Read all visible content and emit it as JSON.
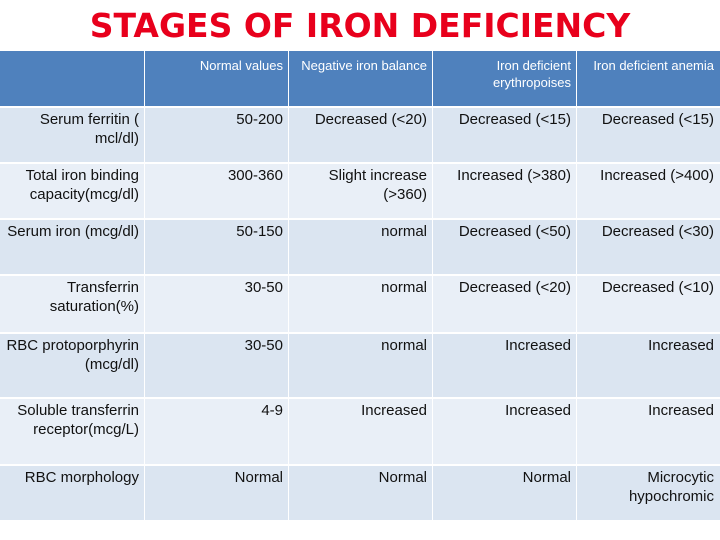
{
  "title": "STAGES OF IRON DEFICIENCY",
  "headers": [
    "",
    "Normal values",
    "Negative iron balance",
    "Iron deficient erythropoises",
    "Iron deficient anemia"
  ],
  "rows": [
    {
      "label": "Serum ferritin ( mcl/dl)",
      "values": [
        "50-200",
        "Decreased (<20)",
        "Decreased (<15)",
        "Decreased (<15)"
      ]
    },
    {
      "label": "Total iron binding capacity(mcg/dl)",
      "values": [
        "300-360",
        "Slight increase (>360)",
        "Increased (>380)",
        "Increased (>400)"
      ]
    },
    {
      "label": "Serum iron (mcg/dl)",
      "values": [
        "50-150",
        "normal",
        "Decreased (<50)",
        "Decreased (<30)"
      ]
    },
    {
      "label": "Transferrin saturation(%)",
      "values": [
        "30-50",
        "normal",
        "Decreased (<20)",
        "Decreased (<10)"
      ]
    },
    {
      "label": "RBC protoporphyrin (mcg/dl)",
      "values": [
        "30-50",
        "normal",
        "Increased",
        "Increased"
      ]
    },
    {
      "label": "Soluble transferrin receptor(mcg/L)",
      "values": [
        "4-9",
        "Increased",
        "Increased",
        "Increased"
      ]
    },
    {
      "label": "RBC morphology",
      "values": [
        "Normal",
        "Normal",
        "Normal",
        "Microcytic hypochromic"
      ]
    }
  ],
  "colors": {
    "title": "#e8001c",
    "header_bg": "#4f81bd",
    "row_bg_a": "#dbe5f1",
    "row_bg_b": "#e9eff7"
  }
}
